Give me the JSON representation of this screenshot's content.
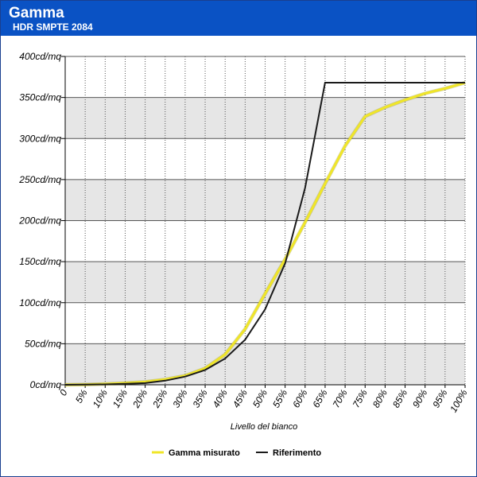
{
  "header": {
    "title": "Gamma",
    "subtitle": "HDR SMPTE 2084"
  },
  "colors": {
    "header_bg": "#0a52c4",
    "measured": "#f0e628",
    "reference": "#1a1a1a",
    "band": "#e6e6e6"
  },
  "chart_data": {
    "type": "line",
    "title": "Gamma",
    "subtitle": "HDR SMPTE 2084",
    "xlabel": "Livello del bianco",
    "ylabel": "",
    "x_unit": "%",
    "y_unit": "cd/mq",
    "ylim": [
      0,
      400
    ],
    "y_ticks": [
      0,
      50,
      100,
      150,
      200,
      250,
      300,
      350,
      400
    ],
    "y_tick_labels": [
      "0cd/mq",
      "50cd/mq",
      "100cd/mq",
      "150cd/mq",
      "200cd/mq",
      "250cd/mq",
      "300cd/mq",
      "350cd/mq",
      "400cd/mq"
    ],
    "x": [
      0,
      5,
      10,
      15,
      20,
      25,
      30,
      35,
      40,
      45,
      50,
      55,
      60,
      65,
      70,
      75,
      80,
      85,
      90,
      95,
      100
    ],
    "x_tick_labels": [
      "0",
      "5%",
      "10%",
      "15%",
      "20%",
      "25%",
      "30%",
      "35%",
      "40%",
      "45%",
      "50%",
      "55%",
      "60%",
      "65%",
      "70%",
      "75%",
      "80%",
      "85%",
      "90%",
      "95%",
      "100%"
    ],
    "grid": true,
    "legend": "bottom",
    "series": [
      {
        "name": "Gamma misurato",
        "color": "#f0e628",
        "values": [
          0,
          0.3,
          1,
          2,
          3.5,
          6.5,
          11,
          20,
          37,
          68,
          111,
          153,
          198,
          245,
          291,
          327,
          338,
          347,
          355,
          361,
          368
        ]
      },
      {
        "name": "Riferimento",
        "color": "#1a1a1a",
        "values": [
          0,
          0.2,
          0.5,
          1.2,
          2,
          5,
          10,
          18,
          32,
          55,
          92,
          148,
          240,
          368,
          368,
          368,
          368,
          368,
          368,
          368,
          368
        ]
      }
    ]
  }
}
